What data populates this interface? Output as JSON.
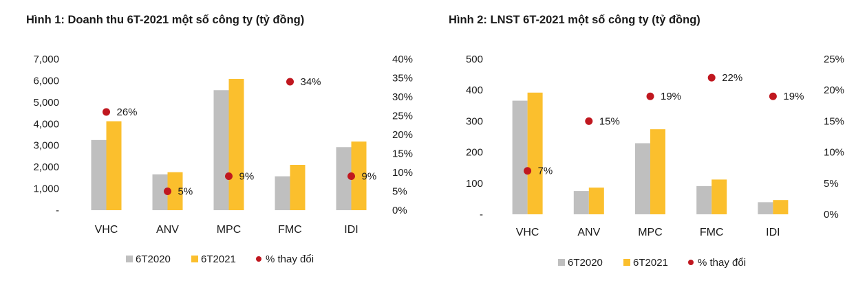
{
  "chart_data": [
    {
      "type": "bar",
      "title": "Hình 1: Doanh thu 6T-2021 một số công ty (tỷ đồng)",
      "categories": [
        "VHC",
        "ANV",
        "MPC",
        "FMC",
        "IDI"
      ],
      "series": [
        {
          "name": "6T2020",
          "values": [
            3250,
            1660,
            5560,
            1570,
            2920
          ],
          "color": "#bfbfbf"
        },
        {
          "name": "6T2021",
          "values": [
            4120,
            1760,
            6080,
            2100,
            3180
          ],
          "color": "#fbbf2d"
        }
      ],
      "secondary_series": {
        "name": "% thay đổi",
        "values": [
          26,
          5,
          9,
          34,
          9
        ],
        "labels": [
          "26%",
          "5%",
          "9%",
          "34%",
          "9%"
        ],
        "color": "#c0171f"
      },
      "ylim": [
        0,
        7000
      ],
      "y_ticks": [
        "-",
        "1,000",
        "2,000",
        "3,000",
        "4,000",
        "5,000",
        "6,000",
        "7,000"
      ],
      "y2lim": [
        0,
        40
      ],
      "y2_ticks": [
        "0%",
        "5%",
        "10%",
        "15%",
        "20%",
        "25%",
        "30%",
        "35%",
        "40%"
      ],
      "xlabel": "",
      "ylabel": "",
      "legend": [
        "6T2020",
        "6T2021",
        "% thay đổi"
      ],
      "legend_position": "bottom"
    },
    {
      "type": "bar",
      "title": "Hình 2: LNST 6T-2021 một số công ty (tỷ đồng)",
      "categories": [
        "VHC",
        "ANV",
        "MPC",
        "FMC",
        "IDI"
      ],
      "series": [
        {
          "name": "6T2020",
          "values": [
            366,
            75,
            229,
            91,
            39
          ],
          "color": "#bfbfbf"
        },
        {
          "name": "6T2021",
          "values": [
            392,
            86,
            274,
            112,
            46
          ],
          "color": "#fbbf2d"
        }
      ],
      "secondary_series": {
        "name": "% thay đổi",
        "values": [
          7,
          15,
          19,
          22,
          19
        ],
        "labels": [
          "7%",
          "15%",
          "19%",
          "22%",
          "19%"
        ],
        "color": "#c0171f"
      },
      "ylim": [
        0,
        500
      ],
      "y_ticks": [
        "-",
        "100",
        "200",
        "300",
        "400",
        "500"
      ],
      "y2lim": [
        0,
        25
      ],
      "y2_ticks": [
        "0%",
        "5%",
        "10%",
        "15%",
        "20%",
        "25%"
      ],
      "xlabel": "",
      "ylabel": "",
      "legend": [
        "6T2020",
        "6T2021",
        "% thay đổi"
      ],
      "legend_position": "bottom"
    }
  ]
}
